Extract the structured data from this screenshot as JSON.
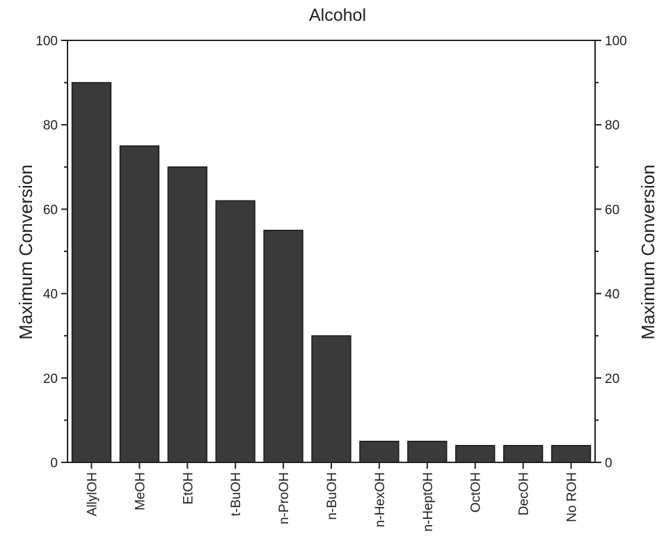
{
  "chart_data": {
    "type": "bar",
    "title": "Alcohol",
    "ylabel": "Maximum Conversion",
    "ylabel_right": "Maximum Conversion",
    "xlabel": "",
    "ylim": [
      0,
      100
    ],
    "yticks": [
      0,
      20,
      40,
      60,
      80,
      100
    ],
    "grid": false,
    "bar_color": "#3a3a3a",
    "categories": [
      "AllylOH",
      "MeOH",
      "EtOH",
      "t-BuOH",
      "n-ProOH",
      "n-BuOH",
      "n-HexOH",
      "n-HeptOH",
      "OctOH",
      "DecOH",
      "No ROH"
    ],
    "values": [
      90,
      75,
      70,
      62,
      55,
      30,
      5,
      5,
      4,
      4,
      4
    ]
  }
}
